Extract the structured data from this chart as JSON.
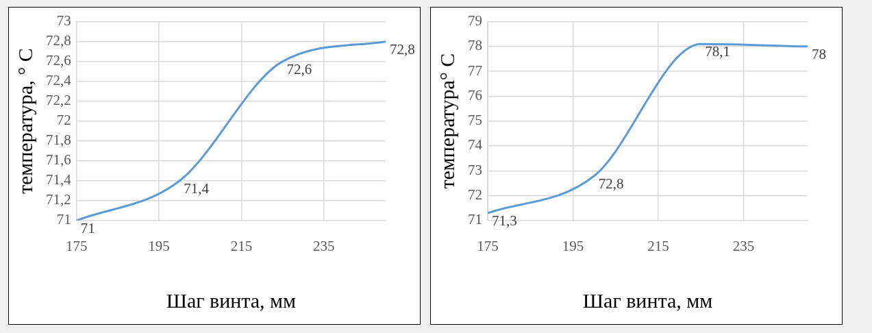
{
  "chart_data": [
    {
      "type": "line",
      "xlabel": "Шаг винта, мм",
      "ylabel": "температура, ° С",
      "x": [
        175,
        200,
        225,
        250
      ],
      "series": [
        {
          "color": "#5b9bd5",
          "values": [
            71,
            71.4,
            72.6,
            72.8
          ],
          "value_labels": [
            "71",
            "71,4",
            "72,6",
            "72,8"
          ]
        }
      ],
      "xlim": [
        175,
        250
      ],
      "xticks": [
        175,
        195,
        215,
        235
      ],
      "ylim": [
        71,
        73
      ],
      "yticks": [
        71,
        {
          "value": 71.2,
          "label": "71,2"
        },
        {
          "value": 71.4,
          "label": "71,4"
        },
        {
          "value": 71.6,
          "label": "71,6"
        },
        {
          "value": 71.8,
          "label": "71,8"
        },
        72,
        {
          "value": 72.2,
          "label": "72,2"
        },
        {
          "value": 72.4,
          "label": "72,4"
        },
        {
          "value": 72.6,
          "label": "72,6"
        },
        {
          "value": 72.8,
          "label": "72,8"
        },
        73
      ],
      "grid": true,
      "legend": false,
      "marker": "none",
      "line_style": "solid"
    },
    {
      "type": "line",
      "xlabel": "Шаг винта, мм",
      "ylabel": "температура° С",
      "x": [
        175,
        200,
        225,
        250
      ],
      "series": [
        {
          "color": "#5b9bd5",
          "values": [
            71.3,
            72.8,
            78.1,
            78
          ],
          "value_labels": [
            "71,3",
            "72,8",
            "78,1",
            "78"
          ]
        }
      ],
      "xlim": [
        175,
        250
      ],
      "xticks": [
        175,
        195,
        215,
        235
      ],
      "ylim": [
        71,
        79
      ],
      "yticks": [
        71,
        72,
        73,
        74,
        75,
        76,
        77,
        78,
        79
      ],
      "grid": true,
      "legend": false,
      "marker": "none",
      "line_style": "solid"
    }
  ]
}
